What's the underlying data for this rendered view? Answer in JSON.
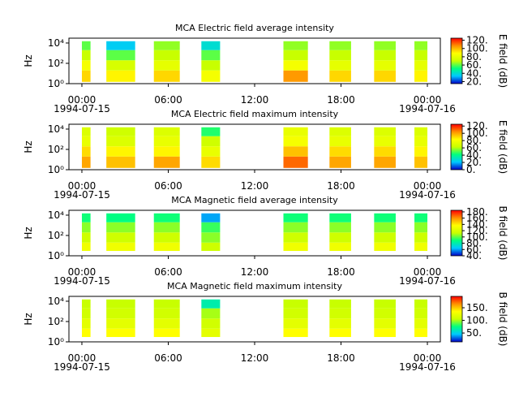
{
  "chart_data": [
    {
      "type": "spectrogram",
      "title": "MCA  Electric field average intensity",
      "ylabel": "Hz",
      "colorbar_label": "E field (dB)",
      "colormap": [
        "#0000c8",
        "#00c8ff",
        "#00ff80",
        "#c8ff00",
        "#ffff00",
        "#ff9000",
        "#ff0000"
      ],
      "xlim": [
        -0.9,
        24.9
      ],
      "xticks": [
        {
          "value": 0,
          "label": "00:00"
        },
        {
          "value": 6,
          "label": "06:00"
        },
        {
          "value": 12,
          "label": "12:00"
        },
        {
          "value": 18,
          "label": "18:00"
        },
        {
          "value": 24,
          "label": "00:00"
        }
      ],
      "xtick_dates": [
        {
          "value": 0,
          "label": "1994-07-15"
        },
        {
          "value": 24,
          "label": "1994-07-16"
        }
      ],
      "log_y": true,
      "ylim": [
        1,
        30000
      ],
      "yticks": [
        {
          "value": 1,
          "label": "10⁰"
        },
        {
          "value": 100,
          "label": "10²"
        },
        {
          "value": 10000,
          "label": "10⁴"
        }
      ],
      "clim": [
        15,
        125
      ],
      "cticks": [
        {
          "value": 20,
          "label": "20."
        },
        {
          "value": 40,
          "label": "40."
        },
        {
          "value": 60,
          "label": "60."
        },
        {
          "value": 80,
          "label": "80."
        },
        {
          "value": 100,
          "label": "100."
        },
        {
          "value": 120,
          "label": "120."
        }
      ],
      "segments": [
        [
          0,
          0.6
        ],
        [
          1.7,
          3.7
        ],
        [
          5.0,
          6.8
        ],
        [
          8.3,
          9.6
        ],
        [
          14.0,
          15.7
        ],
        [
          17.2,
          18.7
        ],
        [
          20.3,
          21.8
        ],
        [
          23.1,
          24.0
        ]
      ],
      "bands": [
        1.5,
        20,
        200,
        2000,
        15000
      ],
      "z": [
        [
          95,
          85,
          70,
          60
        ],
        [
          90,
          75,
          60,
          35
        ],
        [
          95,
          80,
          70,
          65
        ],
        [
          85,
          70,
          60,
          40
        ],
        [
          105,
          85,
          70,
          65
        ],
        [
          95,
          80,
          70,
          65
        ],
        [
          95,
          80,
          70,
          65
        ],
        [
          90,
          80,
          70,
          65
        ]
      ]
    },
    {
      "type": "spectrogram",
      "title": "MCA  Electric field maximum intensity",
      "ylabel": "Hz",
      "colorbar_label": "E field (dB)",
      "colormap": [
        "#0000c8",
        "#00c8ff",
        "#00ff80",
        "#c8ff00",
        "#ffff00",
        "#ff9000",
        "#ff0000"
      ],
      "xlim": [
        -0.9,
        24.9
      ],
      "xticks": [
        {
          "value": 0,
          "label": "00:00"
        },
        {
          "value": 6,
          "label": "06:00"
        },
        {
          "value": 12,
          "label": "12:00"
        },
        {
          "value": 18,
          "label": "18:00"
        },
        {
          "value": 24,
          "label": "00:00"
        }
      ],
      "xtick_dates": [
        {
          "value": 0,
          "label": "1994-07-15"
        },
        {
          "value": 24,
          "label": "1994-07-16"
        }
      ],
      "log_y": true,
      "ylim": [
        1,
        30000
      ],
      "yticks": [
        {
          "value": 1,
          "label": "10⁰"
        },
        {
          "value": 100,
          "label": "10²"
        },
        {
          "value": 10000,
          "label": "10⁴"
        }
      ],
      "clim": [
        0,
        125
      ],
      "cticks": [
        {
          "value": 0,
          "label": "0."
        },
        {
          "value": 20,
          "label": "20."
        },
        {
          "value": 40,
          "label": "40."
        },
        {
          "value": 60,
          "label": "60."
        },
        {
          "value": 80,
          "label": "80."
        },
        {
          "value": 100,
          "label": "100."
        },
        {
          "value": 120,
          "label": "120."
        }
      ],
      "segments": [
        [
          0,
          0.6
        ],
        [
          1.7,
          3.7
        ],
        [
          5.0,
          6.8
        ],
        [
          8.3,
          9.6
        ],
        [
          14.0,
          15.7
        ],
        [
          17.2,
          18.7
        ],
        [
          20.3,
          21.8
        ],
        [
          23.1,
          24.0
        ]
      ],
      "bands": [
        1.5,
        20,
        200,
        2000,
        15000
      ],
      "z": [
        [
          100,
          90,
          75,
          70
        ],
        [
          95,
          85,
          70,
          65
        ],
        [
          100,
          85,
          75,
          70
        ],
        [
          90,
          75,
          65,
          45
        ],
        [
          110,
          95,
          80,
          75
        ],
        [
          100,
          90,
          75,
          70
        ],
        [
          100,
          90,
          75,
          70
        ],
        [
          95,
          85,
          75,
          70
        ]
      ]
    },
    {
      "type": "spectrogram",
      "title": "MCA  Magnetic field average intensity",
      "ylabel": "Hz",
      "colorbar_label": "B field (dB)",
      "colormap": [
        "#0000c8",
        "#00c8ff",
        "#00ff80",
        "#c8ff00",
        "#ffff00",
        "#ff9000",
        "#ff0000"
      ],
      "xlim": [
        -0.9,
        24.9
      ],
      "xticks": [
        {
          "value": 0,
          "label": "00:00"
        },
        {
          "value": 6,
          "label": "06:00"
        },
        {
          "value": 12,
          "label": "12:00"
        },
        {
          "value": 18,
          "label": "18:00"
        },
        {
          "value": 24,
          "label": "00:00"
        }
      ],
      "xtick_dates": [
        {
          "value": 0,
          "label": "1994-07-15"
        },
        {
          "value": 24,
          "label": "1994-07-16"
        }
      ],
      "log_y": true,
      "ylim": [
        1,
        30000
      ],
      "yticks": [
        {
          "value": 1,
          "label": "10⁰"
        },
        {
          "value": 100,
          "label": "10²"
        },
        {
          "value": 10000,
          "label": "10⁴"
        }
      ],
      "clim": [
        40,
        185
      ],
      "cticks": [
        {
          "value": 40,
          "label": "40."
        },
        {
          "value": 60,
          "label": "60."
        },
        {
          "value": 80,
          "label": "80."
        },
        {
          "value": 100,
          "label": "100."
        },
        {
          "value": 120,
          "label": "120."
        },
        {
          "value": 140,
          "label": "140."
        },
        {
          "value": 160,
          "label": "160."
        },
        {
          "value": 180,
          "label": "180."
        }
      ],
      "segments": [
        [
          0,
          0.6
        ],
        [
          1.7,
          3.7
        ],
        [
          5.0,
          6.8
        ],
        [
          8.3,
          9.6
        ],
        [
          14.0,
          15.7
        ],
        [
          17.2,
          18.7
        ],
        [
          20.3,
          21.8
        ],
        [
          23.1,
          24.0
        ]
      ],
      "bands": [
        3,
        20,
        200,
        2000,
        15000
      ],
      "z": [
        [
          130,
          115,
          105,
          90
        ],
        [
          130,
          115,
          105,
          88
        ],
        [
          130,
          115,
          105,
          90
        ],
        [
          115,
          105,
          95,
          60
        ],
        [
          130,
          115,
          105,
          90
        ],
        [
          130,
          115,
          105,
          90
        ],
        [
          130,
          115,
          105,
          90
        ],
        [
          130,
          115,
          105,
          90
        ]
      ]
    },
    {
      "type": "spectrogram",
      "title": "MCA  Magnetic field maximum intensity",
      "ylabel": "Hz",
      "colorbar_label": "B field (dB)",
      "colormap": [
        "#0000c8",
        "#00c8ff",
        "#00ff80",
        "#c8ff00",
        "#ffff00",
        "#ff9000",
        "#ff0000"
      ],
      "xlim": [
        -0.9,
        24.9
      ],
      "xticks": [
        {
          "value": 0,
          "label": "00:00"
        },
        {
          "value": 6,
          "label": "06:00"
        },
        {
          "value": 12,
          "label": "12:00"
        },
        {
          "value": 18,
          "label": "18:00"
        },
        {
          "value": 24,
          "label": "00:00"
        }
      ],
      "xtick_dates": [
        {
          "value": 0,
          "label": "1994-07-15"
        },
        {
          "value": 24,
          "label": "1994-07-16"
        }
      ],
      "log_y": true,
      "ylim": [
        1,
        30000
      ],
      "yticks": [
        {
          "value": 1,
          "label": "10⁰"
        },
        {
          "value": 100,
          "label": "10²"
        },
        {
          "value": 10000,
          "label": "10⁴"
        }
      ],
      "clim": [
        15,
        195
      ],
      "cticks": [
        {
          "value": 50,
          "label": "50."
        },
        {
          "value": 100,
          "label": "100."
        },
        {
          "value": 150,
          "label": "150."
        }
      ],
      "segments": [
        [
          0,
          0.6
        ],
        [
          1.7,
          3.7
        ],
        [
          5.0,
          6.8
        ],
        [
          8.3,
          9.6
        ],
        [
          14.0,
          15.7
        ],
        [
          17.2,
          18.7
        ],
        [
          20.3,
          21.8
        ],
        [
          23.1,
          24.0
        ]
      ],
      "bands": [
        3,
        20,
        200,
        2000,
        15000
      ],
      "z": [
        [
          135,
          120,
          110,
          105
        ],
        [
          135,
          120,
          110,
          105
        ],
        [
          135,
          120,
          110,
          105
        ],
        [
          120,
          110,
          100,
          65
        ],
        [
          135,
          120,
          110,
          105
        ],
        [
          135,
          120,
          110,
          105
        ],
        [
          135,
          120,
          110,
          105
        ],
        [
          135,
          120,
          110,
          105
        ]
      ]
    }
  ]
}
